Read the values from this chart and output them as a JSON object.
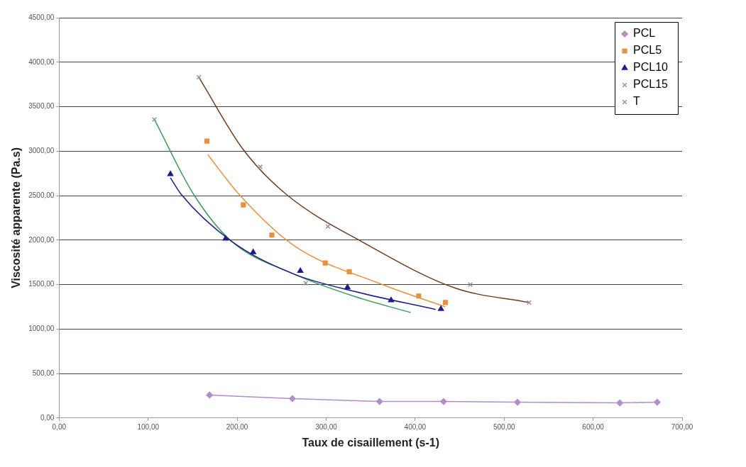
{
  "chart_data": {
    "type": "scatter",
    "xlabel": "Taux de cisaillement (s-1)",
    "ylabel": "Viscosité apparente (Pa.s)",
    "xlim": [
      0,
      700
    ],
    "ylim": [
      0,
      4500
    ],
    "xticks": [
      {
        "value": 0,
        "label": "0,00"
      },
      {
        "value": 100,
        "label": "100,00"
      },
      {
        "value": 200,
        "label": "200,00"
      },
      {
        "value": 300,
        "label": "300,00"
      },
      {
        "value": 400,
        "label": "400,00"
      },
      {
        "value": 500,
        "label": "500,00"
      },
      {
        "value": 600,
        "label": "600,00"
      },
      {
        "value": 700,
        "label": "700,00"
      }
    ],
    "yticks": [
      {
        "value": 0,
        "label": "0,00"
      },
      {
        "value": 500,
        "label": "500,00"
      },
      {
        "value": 1000,
        "label": "1000,00"
      },
      {
        "value": 1500,
        "label": "1500,00"
      },
      {
        "value": 2000,
        "label": "2000,00"
      },
      {
        "value": 2500,
        "label": "2500,00"
      },
      {
        "value": 3000,
        "label": "3000,00"
      },
      {
        "value": 3500,
        "label": "3500,00"
      },
      {
        "value": 4000,
        "label": "4000,00"
      },
      {
        "value": 4500,
        "label": "4500,00"
      }
    ],
    "grid": "y",
    "legend": "top right",
    "series": [
      {
        "name": "PCL",
        "type": "line",
        "marker": "diamond",
        "color": "#b48cc8",
        "x": [
          169,
          262,
          360,
          432,
          515,
          630,
          672
        ],
        "values": [
          258,
          218,
          185,
          185,
          177,
          169,
          177
        ]
      },
      {
        "name": "PCL5",
        "type": "scatter",
        "marker": "square",
        "color": "#e8903c",
        "x": [
          166,
          207,
          239,
          299,
          326,
          404,
          434
        ],
        "values": [
          3113,
          2395,
          2056,
          1742,
          1645,
          1371,
          1298
        ]
      },
      {
        "name": "PCL10",
        "type": "scatter",
        "marker": "triangle",
        "color": "#1c1c8c",
        "x": [
          125,
          187,
          218,
          271,
          324,
          373,
          429
        ],
        "values": [
          2742,
          2016,
          1863,
          1653,
          1468,
          1323,
          1226
        ]
      },
      {
        "name": "PCL15",
        "type": "scatter",
        "marker": "cross",
        "color": "#8c9c8c",
        "x": [
          107,
          277
        ],
        "values": [
          3355,
          1516
        ]
      },
      {
        "name": "T",
        "type": "scatter",
        "marker": "cross",
        "color": "#9c8c9c",
        "x": [
          157,
          226,
          302,
          462,
          528
        ],
        "values": [
          3830,
          2823,
          2153,
          1500,
          1298
        ]
      },
      {
        "type": "line",
        "marker": "none",
        "color": "#e8903c",
        "x": [
          167,
          202,
          263,
          361,
          434
        ],
        "values": [
          2960,
          2516,
          1944,
          1508,
          1250
        ]
      },
      {
        "type": "line",
        "marker": "none",
        "color": "#1c1c8c",
        "x": [
          125,
          137,
          193,
          263,
          333,
          423
        ],
        "values": [
          2700,
          2516,
          1992,
          1621,
          1420,
          1220
        ]
      },
      {
        "type": "line",
        "marker": "none",
        "color": "#3c9c5c",
        "x": [
          107,
          151,
          193,
          263,
          333,
          395
        ],
        "values": [
          3355,
          2516,
          1992,
          1621,
          1363,
          1185
        ]
      },
      {
        "type": "line",
        "marker": "none",
        "color": "#6c3c1c",
        "x": [
          157,
          207,
          255,
          347,
          445,
          528
        ],
        "values": [
          3830,
          3016,
          2516,
          1944,
          1460,
          1298
        ]
      }
    ]
  }
}
